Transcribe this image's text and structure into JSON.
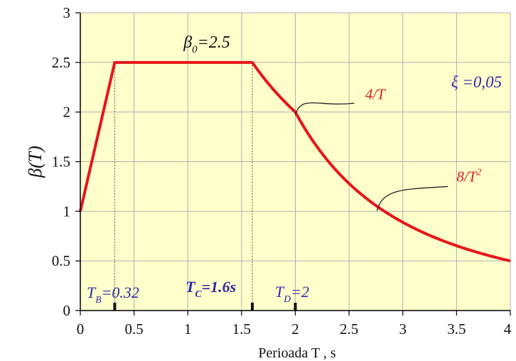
{
  "chart_data": {
    "type": "line",
    "x": [
      0,
      0.32,
      1.6,
      2,
      2.4,
      2.8,
      3.2,
      3.6,
      4
    ],
    "series": [
      {
        "values": [
          1,
          2.5,
          2.5,
          2,
          1.389,
          1.02,
          0.781,
          0.617,
          0.5
        ]
      }
    ],
    "xlim": [
      0,
      4
    ],
    "ylim": [
      0,
      3
    ],
    "xticks": [
      "0",
      "0.5",
      "1",
      "1.5",
      "2",
      "2.5",
      "3",
      "3.5",
      "4"
    ],
    "yticks": [
      "0",
      "0.5",
      "1",
      "1.5",
      "2",
      "2.5",
      "3"
    ],
    "xlabel": "Perioada T , s",
    "ylabel": "β(T)",
    "grid": true,
    "colors": {
      "plot_background": "#ffffcc",
      "curve": "#e8141b",
      "annotation_blue": "#2a2aa8",
      "annotation_red": "#d82020",
      "grid": "#b0b0b0"
    },
    "annotations": {
      "beta0": {
        "text": "β 0 =2.5",
        "x": 0.96,
        "y": 2.65
      },
      "xi": {
        "text": "ξ =0,05",
        "x": 3.45,
        "y": 2.25
      },
      "inv_t": {
        "text": "4/T",
        "x": 2.65,
        "y": 2.13,
        "target": [
          2,
          2
        ]
      },
      "inv_t2": {
        "text": "8/T",
        "exponent": "2",
        "x": 3.5,
        "y": 1.3,
        "target": [
          2.8,
          1.02
        ]
      },
      "tb": {
        "text": "T B =0.32",
        "value": 0.32
      },
      "tc": {
        "text": "T C =1.6s",
        "value": 1.6
      },
      "td": {
        "text": "T D =2",
        "value": 2
      }
    }
  }
}
